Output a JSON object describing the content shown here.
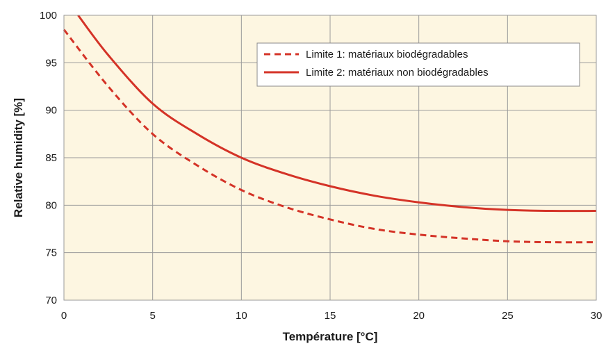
{
  "chart_data": {
    "type": "line",
    "title": "",
    "xlabel": "Température [°C]",
    "ylabel": "Relative humidity [%]",
    "xlim": [
      0,
      30
    ],
    "ylim": [
      70,
      100
    ],
    "xticks": [
      0,
      5,
      10,
      15,
      20,
      25,
      30
    ],
    "yticks": [
      70,
      75,
      80,
      85,
      90,
      95,
      100
    ],
    "grid": true,
    "legend_position": "top-right",
    "colors": {
      "plot_background": "#fdf6e1",
      "grid": "#9a9a9a",
      "series": "#d43327"
    },
    "series": [
      {
        "name": "Limite 1: matériaux biodégradables",
        "style": "dashed",
        "x": [
          0,
          2.5,
          5,
          7.5,
          10,
          12.5,
          15,
          17.5,
          20,
          22.5,
          25,
          27.5,
          30
        ],
        "y": [
          98.5,
          92.5,
          87.5,
          84.2,
          81.6,
          79.8,
          78.5,
          77.5,
          76.9,
          76.5,
          76.2,
          76.1,
          76.1
        ]
      },
      {
        "name": "Limite 2: matériaux non biodégradables",
        "style": "solid",
        "x": [
          0.8,
          2.5,
          5,
          7.5,
          10,
          12.5,
          15,
          17.5,
          20,
          22.5,
          25,
          27.5,
          30
        ],
        "y": [
          100,
          95.8,
          90.7,
          87.5,
          85.0,
          83.3,
          82.0,
          81.0,
          80.3,
          79.8,
          79.5,
          79.4,
          79.4
        ]
      }
    ]
  }
}
